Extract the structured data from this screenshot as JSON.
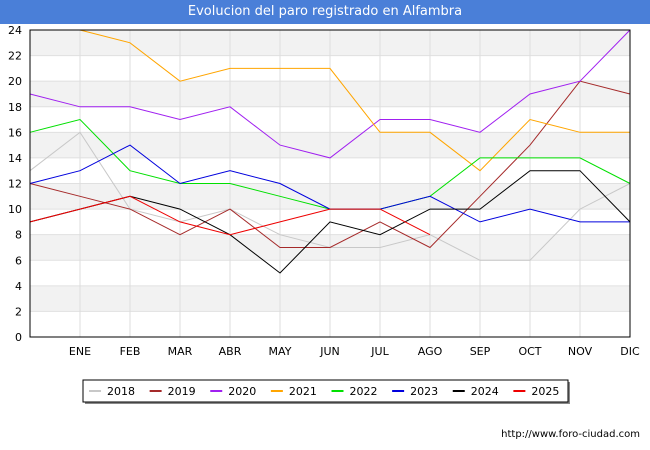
{
  "chart_data": {
    "type": "line",
    "title": "Evolucion del paro registrado en Alfambra",
    "categories": [
      "",
      "ENE",
      "FEB",
      "MAR",
      "ABR",
      "MAY",
      "JUN",
      "JUL",
      "AGO",
      "SEP",
      "OCT",
      "NOV",
      "DIC"
    ],
    "ylim": [
      0,
      24
    ],
    "yticks": [
      0,
      2,
      4,
      6,
      8,
      10,
      12,
      14,
      16,
      18,
      20,
      22,
      24
    ],
    "grid": true,
    "series": [
      {
        "name": "2018",
        "color": "#c8c8c8",
        "values": [
          13,
          16,
          10,
          9,
          10,
          8,
          7,
          7,
          8,
          6,
          6,
          10,
          12
        ]
      },
      {
        "name": "2019",
        "color": "#a52a2a",
        "values": [
          12,
          11,
          10,
          8,
          10,
          7,
          7,
          9,
          7,
          11,
          15,
          20,
          19
        ]
      },
      {
        "name": "2020",
        "color": "#a020f0",
        "values": [
          19,
          18,
          18,
          17,
          18,
          15,
          14,
          17,
          17,
          16,
          19,
          20,
          24
        ]
      },
      {
        "name": "2021",
        "color": "#ffa500",
        "values": [
          null,
          24,
          23,
          20,
          21,
          21,
          21,
          16,
          16,
          13,
          17,
          16,
          16
        ]
      },
      {
        "name": "2022",
        "color": "#00e000",
        "values": [
          16,
          17,
          13,
          12,
          12,
          11,
          10,
          10,
          11,
          14,
          14,
          14,
          12
        ]
      },
      {
        "name": "2023",
        "color": "#0000dd",
        "values": [
          12,
          13,
          15,
          12,
          13,
          12,
          10,
          10,
          11,
          9,
          10,
          9,
          9
        ]
      },
      {
        "name": "2024",
        "color": "#000000",
        "values": [
          9,
          10,
          11,
          10,
          8,
          5,
          9,
          8,
          10,
          10,
          13,
          13,
          9
        ]
      },
      {
        "name": "2025",
        "color": "#ee0000",
        "values": [
          9,
          10,
          11,
          9,
          8,
          9,
          10,
          10,
          8,
          null,
          null,
          null,
          null
        ]
      }
    ]
  },
  "footer": {
    "url": "http://www.foro-ciudad.com"
  }
}
